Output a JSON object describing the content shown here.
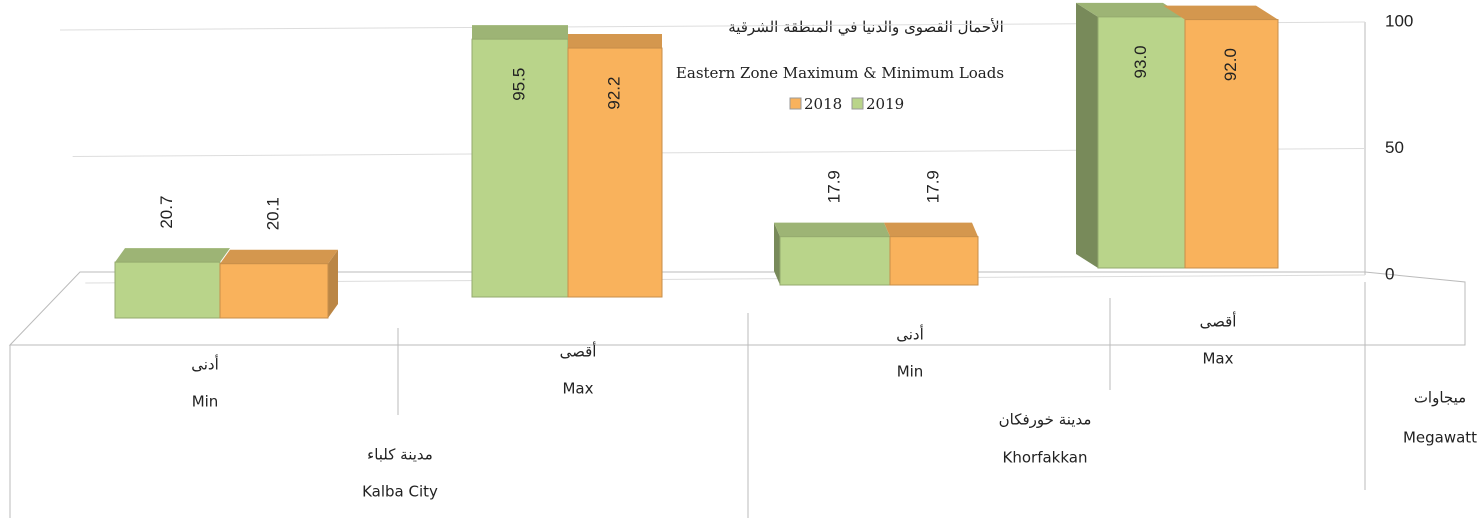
{
  "chart_data": {
    "type": "bar",
    "title": "الأحمال القصوى والدنيا في المنطقة الشرقية",
    "subtitle": "Eastern Zone Maximum & Minimum Loads",
    "categories": [
      [
        "أدنى",
        "Min"
      ],
      [
        "أقصى",
        "Max"
      ],
      [
        "أدنى",
        "Min"
      ],
      [
        "أقصى",
        "Max"
      ]
    ],
    "groups": [
      {
        "label": [
          "مدينة كلباء",
          "Kalba City"
        ]
      },
      {
        "label": [
          "مدينة خورفكان",
          "Khorfakkan"
        ]
      }
    ],
    "y_label": [
      "ميجاوات",
      "Megawatt"
    ],
    "series": [
      {
        "name": "2019",
        "color": "#b9d48a",
        "values": [
          20.7,
          95.5,
          17.9,
          93.0
        ],
        "value_labels": [
          "20.7",
          "95.5",
          "17.9",
          "93.0"
        ]
      },
      {
        "name": "2018",
        "color": "#f9b25c",
        "values": [
          20.1,
          92.2,
          17.9,
          92.0
        ],
        "value_labels": [
          "20.1",
          "92.2",
          "17.9",
          "92.0"
        ]
      }
    ],
    "ylim": [
      0,
      100
    ],
    "yticks": [
      0,
      50,
      100
    ],
    "grid": true
  }
}
